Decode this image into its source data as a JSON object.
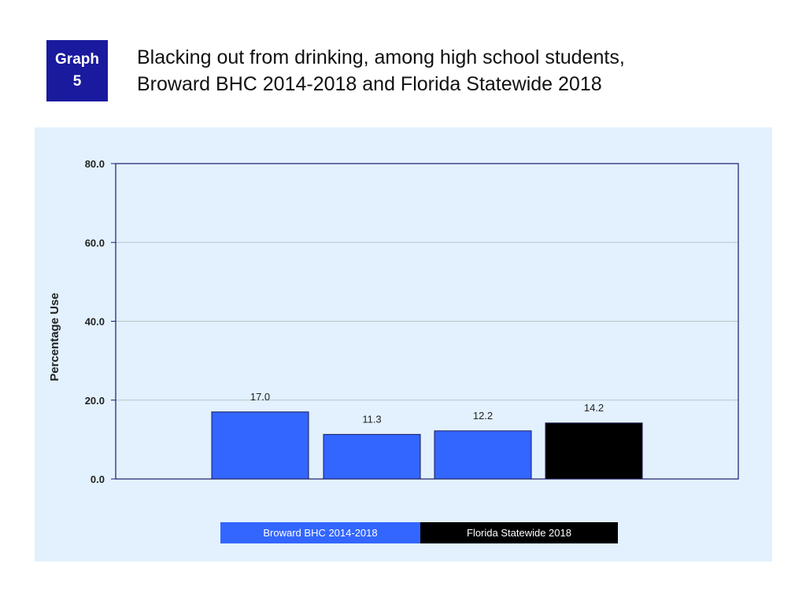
{
  "badge": {
    "line1": "Graph",
    "line2": "5"
  },
  "title": {
    "line1": "Blacking out from drinking, among high school students,",
    "line2": "Broward BHC 2014-2018 and Florida Statewide 2018"
  },
  "colors": {
    "broward": "#3366ff",
    "florida": "#000000",
    "badge": "#1a1a9e",
    "panel": "#e2f1fd"
  },
  "chart_data": {
    "type": "bar",
    "title": "Blacking out from drinking, among high school students, Broward BHC 2014-2018 and Florida Statewide 2018",
    "xlabel": "",
    "ylabel": "Percentage Use",
    "ylim": [
      0,
      80
    ],
    "yticks": [
      "0.0",
      "20.0",
      "40.0",
      "60.0",
      "80.0"
    ],
    "grid": true,
    "legend_position": "bottom",
    "bars": [
      {
        "group": "Broward BHC 2014-2018",
        "value": 17.0,
        "label": "17.0"
      },
      {
        "group": "Broward BHC 2014-2018",
        "value": 11.3,
        "label": "11.3"
      },
      {
        "group": "Broward BHC 2014-2018",
        "value": 12.2,
        "label": "12.2"
      },
      {
        "group": "Florida Statewide 2018",
        "value": 14.2,
        "label": "14.2"
      }
    ],
    "legend": [
      "Broward BHC 2014-2018",
      "Florida Statewide 2018"
    ]
  }
}
